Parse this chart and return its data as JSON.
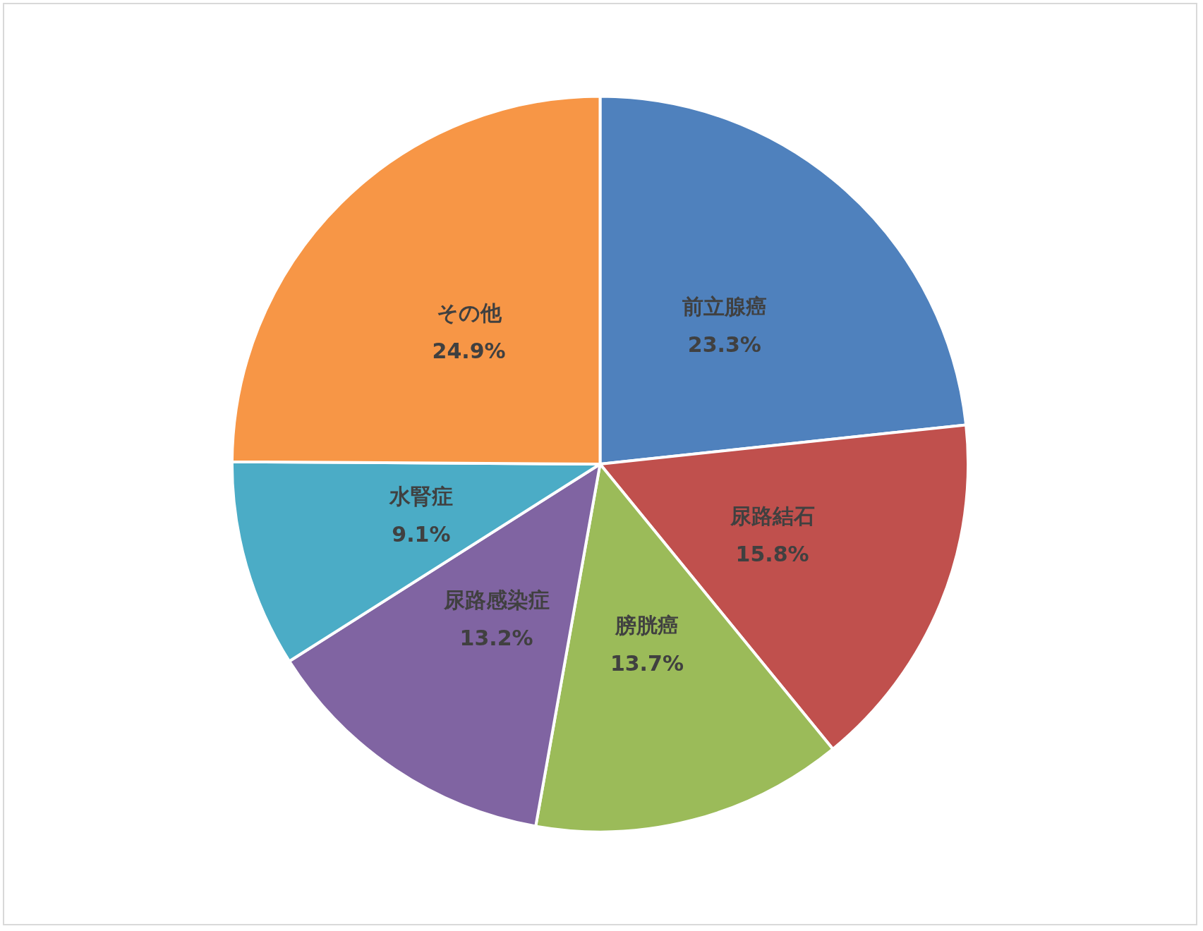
{
  "chart_data": {
    "type": "pie",
    "categories": [
      "前立腺癌",
      "尿路結石",
      "膀胱癌",
      "尿路感染症",
      "水腎症",
      "その他"
    ],
    "values": [
      23.3,
      15.8,
      13.7,
      13.2,
      9.1,
      24.9
    ],
    "value_labels": [
      "23.3%",
      "15.8%",
      "13.7%",
      "13.2%",
      "9.1%",
      "24.9%"
    ],
    "colors": [
      "#4f81bd",
      "#c0504d",
      "#9bbb59",
      "#8064a2",
      "#4bacc6",
      "#f79646"
    ],
    "legend": false
  }
}
